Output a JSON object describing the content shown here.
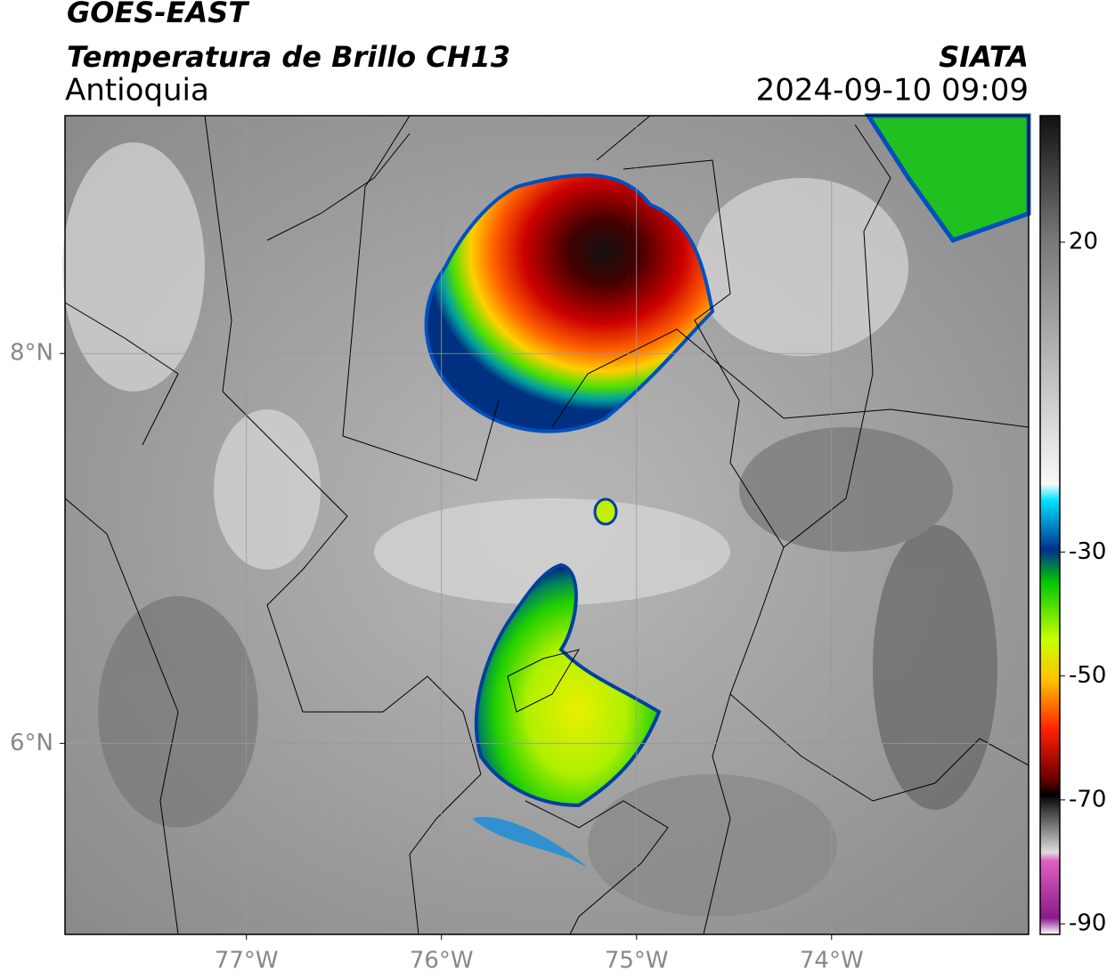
{
  "header": {
    "title": "GOES-EAST",
    "subtitle": "Temperatura de Brillo CH13",
    "region": "Antioquia",
    "source": "SIATA",
    "datetime": "2024-09-10 09:09"
  },
  "map": {
    "lon_range": [
      -77.93,
      -72.99
    ],
    "lat_range": [
      5.02,
      9.22
    ],
    "lat_ticks": [
      {
        "value": 8,
        "label": "8°N"
      },
      {
        "value": 6,
        "label": "6°N"
      }
    ],
    "lon_ticks": [
      {
        "value": -77,
        "label": "77°W"
      },
      {
        "value": -76,
        "label": "76°W"
      },
      {
        "value": -75,
        "label": "75°W"
      },
      {
        "value": -74,
        "label": "74°W"
      }
    ]
  },
  "colorbar": {
    "range": [
      -91.7,
      40.4
    ],
    "ticks": [
      20,
      -30,
      -50,
      -70,
      -90
    ]
  }
}
